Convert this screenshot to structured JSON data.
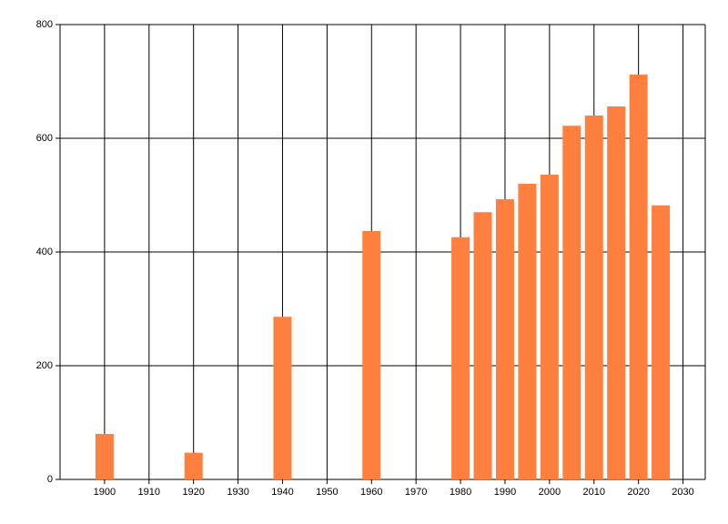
{
  "chart_data": {
    "type": "bar",
    "x": [
      1900,
      1920,
      1940,
      1960,
      1980,
      1985,
      1990,
      1995,
      2000,
      2005,
      2010,
      2015,
      2020,
      2025
    ],
    "values": [
      80,
      47,
      286,
      437,
      426,
      470,
      493,
      520,
      536,
      622,
      640,
      656,
      712,
      482
    ],
    "color": "#ff7f3f",
    "xlim": [
      1890,
      2035
    ],
    "xticks": [
      1900,
      1910,
      1920,
      1930,
      1940,
      1950,
      1960,
      1970,
      1980,
      1990,
      2000,
      2010,
      2020,
      2030
    ],
    "ylim": [
      0,
      800
    ],
    "yticks": [
      0,
      200,
      400,
      600,
      800
    ],
    "grid": true
  }
}
